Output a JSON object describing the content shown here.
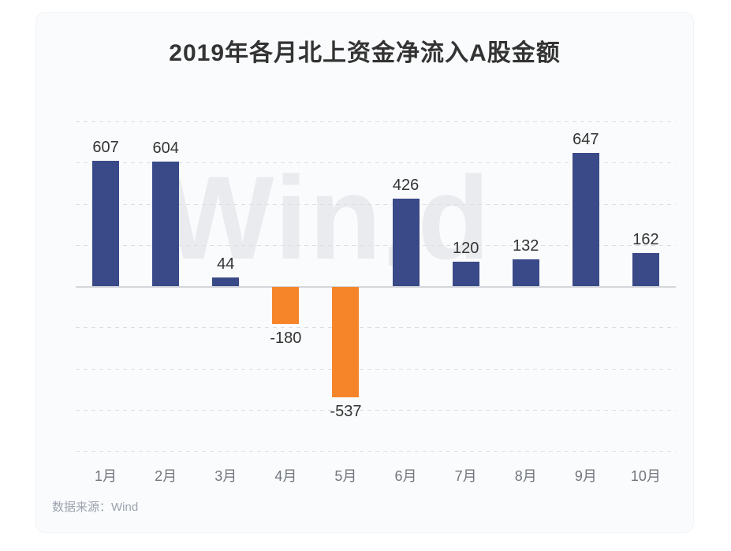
{
  "title": "2019年各月北上资金净流入A股金额",
  "source_note": "数据来源：Wind",
  "watermark": "Wind",
  "chart_data": {
    "type": "bar",
    "title": "2019年各月北上资金净流入A股金额",
    "categories": [
      "1月",
      "2月",
      "3月",
      "4月",
      "5月",
      "6月",
      "7月",
      "8月",
      "9月",
      "10月"
    ],
    "values": [
      607,
      604,
      44,
      -180,
      -537,
      426,
      120,
      132,
      647,
      162
    ],
    "xlabel": "",
    "ylabel": "",
    "ylim": [
      -800,
      800
    ],
    "grid_step": 200,
    "grid": "horizontal-dashed",
    "legend": "none",
    "data_labels": true,
    "colors": {
      "positive_bar": "#3A4A88",
      "negative_bar": "#F6852A",
      "label_text": "#333333",
      "axis_text": "#71767e",
      "gridline": "#dbdee3",
      "zero_line": "#d3d6db",
      "watermark": "#e9ebee",
      "card_background": "#fafbfc"
    },
    "source": "数据来源：Wind",
    "watermark": "Wind"
  }
}
